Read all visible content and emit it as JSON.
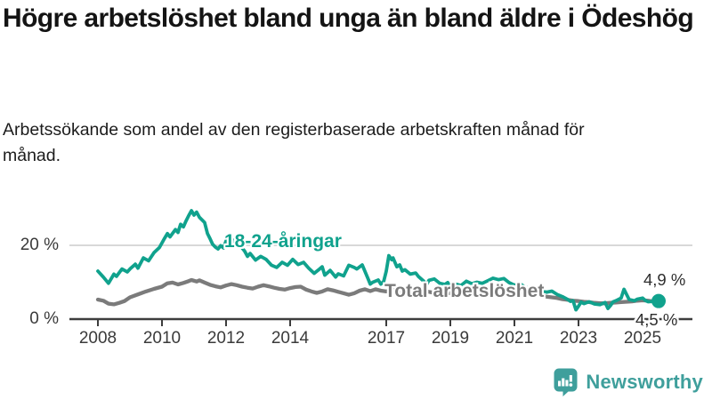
{
  "chart_data": {
    "type": "line",
    "title": "Högre arbetslöshet bland unga än bland äldre i Ödeshög",
    "subtitle": "Arbetssökande som andel av den registerbaserade arbetskraften månad för månad.",
    "unit": "%",
    "ylim": [
      0,
      30
    ],
    "xlim": [
      2007.1,
      2026.6
    ],
    "grid": "horizontal line at 20% only",
    "legend_position": "inline labels on lines",
    "y_ticks": [
      {
        "value": 20,
        "label": "20 %"
      },
      {
        "value": 0,
        "label": "0 %"
      }
    ],
    "x_ticks": [
      {
        "year": 2008,
        "label": "2008"
      },
      {
        "year": 2010,
        "label": "2010"
      },
      {
        "year": 2012,
        "label": "2012"
      },
      {
        "year": 2014,
        "label": "2014"
      },
      {
        "year": 2017,
        "label": "2017"
      },
      {
        "year": 2019,
        "label": "2019"
      },
      {
        "year": 2021,
        "label": "2021"
      },
      {
        "year": 2023,
        "label": "2023"
      },
      {
        "year": 2025,
        "label": "2025"
      }
    ],
    "series": [
      {
        "name": "18-24-åringar",
        "color": "#10a28d",
        "end_label": "4,9 %",
        "end_value": 4.9,
        "end_dot": true,
        "points": [
          [
            2008.0,
            13.0
          ],
          [
            2008.17,
            11.4
          ],
          [
            2008.33,
            9.7
          ],
          [
            2008.5,
            12.2
          ],
          [
            2008.58,
            11.6
          ],
          [
            2008.75,
            13.6
          ],
          [
            2008.92,
            12.8
          ],
          [
            2009.0,
            13.6
          ],
          [
            2009.17,
            14.9
          ],
          [
            2009.25,
            13.8
          ],
          [
            2009.42,
            16.6
          ],
          [
            2009.58,
            15.8
          ],
          [
            2009.75,
            18.0
          ],
          [
            2009.92,
            19.4
          ],
          [
            2010.08,
            21.9
          ],
          [
            2010.17,
            23.2
          ],
          [
            2010.25,
            22.3
          ],
          [
            2010.42,
            24.3
          ],
          [
            2010.5,
            23.5
          ],
          [
            2010.58,
            25.7
          ],
          [
            2010.67,
            25.0
          ],
          [
            2010.75,
            26.6
          ],
          [
            2010.83,
            28.0
          ],
          [
            2010.92,
            29.4
          ],
          [
            2011.0,
            28.2
          ],
          [
            2011.08,
            29.0
          ],
          [
            2011.17,
            27.6
          ],
          [
            2011.33,
            26.2
          ],
          [
            2011.42,
            23.2
          ],
          [
            2011.5,
            21.8
          ],
          [
            2011.58,
            20.3
          ],
          [
            2011.67,
            19.5
          ],
          [
            2011.75,
            19.0
          ],
          [
            2011.83,
            19.9
          ],
          [
            2011.92,
            19.3
          ],
          [
            2012.0,
            21.2
          ],
          [
            2012.17,
            21.0
          ],
          [
            2012.25,
            21.4
          ],
          [
            2012.42,
            20.2
          ],
          [
            2012.58,
            18.4
          ],
          [
            2012.67,
            17.0
          ],
          [
            2012.75,
            17.8
          ],
          [
            2012.92,
            16.0
          ],
          [
            2013.08,
            17.0
          ],
          [
            2013.25,
            16.2
          ],
          [
            2013.42,
            14.6
          ],
          [
            2013.58,
            14.0
          ],
          [
            2013.75,
            15.4
          ],
          [
            2013.92,
            14.6
          ],
          [
            2014.08,
            16.2
          ],
          [
            2014.25,
            14.8
          ],
          [
            2014.42,
            15.4
          ],
          [
            2014.58,
            13.8
          ],
          [
            2014.75,
            12.4
          ],
          [
            2014.92,
            13.6
          ],
          [
            2015.0,
            14.2
          ],
          [
            2015.08,
            11.9
          ],
          [
            2015.25,
            13.2
          ],
          [
            2015.42,
            11.4
          ],
          [
            2015.5,
            12.3
          ],
          [
            2015.67,
            11.7
          ],
          [
            2015.83,
            14.6
          ],
          [
            2016.0,
            14.0
          ],
          [
            2016.08,
            13.6
          ],
          [
            2016.25,
            14.7
          ],
          [
            2016.42,
            11.2
          ],
          [
            2016.5,
            9.5
          ],
          [
            2016.58,
            10.0
          ],
          [
            2016.75,
            10.6
          ],
          [
            2016.83,
            9.5
          ],
          [
            2016.92,
            10.2
          ],
          [
            2017.0,
            13.0
          ],
          [
            2017.08,
            17.2
          ],
          [
            2017.17,
            16.1
          ],
          [
            2017.21,
            16.6
          ],
          [
            2017.33,
            14.2
          ],
          [
            2017.42,
            14.7
          ],
          [
            2017.5,
            13.0
          ],
          [
            2017.58,
            13.4
          ],
          [
            2017.75,
            12.2
          ],
          [
            2017.92,
            12.5
          ],
          [
            2018.0,
            11.6
          ],
          [
            2018.17,
            10.3
          ],
          [
            2018.25,
            9.2
          ],
          [
            2018.33,
            10.5
          ],
          [
            2018.5,
            10.9
          ],
          [
            2018.67,
            9.7
          ],
          [
            2018.83,
            9.4
          ],
          [
            2018.92,
            9.9
          ],
          [
            2019.0,
            8.8
          ],
          [
            2019.17,
            9.5
          ],
          [
            2019.33,
            9.1
          ],
          [
            2019.5,
            10.3
          ],
          [
            2019.67,
            9.6
          ],
          [
            2019.83,
            10.0
          ],
          [
            2020.0,
            9.7
          ],
          [
            2020.17,
            10.4
          ],
          [
            2020.33,
            11.1
          ],
          [
            2020.5,
            10.7
          ],
          [
            2020.67,
            11.0
          ],
          [
            2020.83,
            9.9
          ],
          [
            2021.0,
            9.2
          ],
          [
            2021.17,
            9.6
          ],
          [
            2021.33,
            8.7
          ],
          [
            2021.5,
            8.3
          ],
          [
            2021.67,
            8.6
          ],
          [
            2021.83,
            7.7
          ],
          [
            2022.0,
            7.3
          ],
          [
            2022.17,
            7.6
          ],
          [
            2022.33,
            6.7
          ],
          [
            2022.5,
            6.1
          ],
          [
            2022.67,
            5.3
          ],
          [
            2022.75,
            4.8
          ],
          [
            2022.83,
            5.0
          ],
          [
            2022.92,
            2.5
          ],
          [
            2023.0,
            3.5
          ],
          [
            2023.08,
            4.6
          ],
          [
            2023.17,
            4.2
          ],
          [
            2023.33,
            4.7
          ],
          [
            2023.5,
            4.1
          ],
          [
            2023.67,
            3.9
          ],
          [
            2023.83,
            4.5
          ],
          [
            2023.92,
            2.9
          ],
          [
            2024.0,
            3.7
          ],
          [
            2024.08,
            4.7
          ],
          [
            2024.17,
            5.0
          ],
          [
            2024.33,
            5.7
          ],
          [
            2024.42,
            8.1
          ],
          [
            2024.5,
            6.7
          ],
          [
            2024.58,
            5.3
          ],
          [
            2024.75,
            5.0
          ],
          [
            2024.83,
            5.4
          ],
          [
            2025.0,
            5.7
          ],
          [
            2025.08,
            5.1
          ],
          [
            2025.17,
            4.7
          ],
          [
            2025.33,
            4.8
          ],
          [
            2025.5,
            4.9
          ]
        ]
      },
      {
        "name": "Total arbetslöshet",
        "color": "#7b7b7b",
        "end_label": "4,5 %",
        "end_value": 4.5,
        "end_dot": false,
        "points": [
          [
            2008.0,
            5.3
          ],
          [
            2008.17,
            5.0
          ],
          [
            2008.33,
            4.2
          ],
          [
            2008.5,
            4.0
          ],
          [
            2008.67,
            4.4
          ],
          [
            2008.83,
            4.9
          ],
          [
            2009.0,
            5.9
          ],
          [
            2009.25,
            6.7
          ],
          [
            2009.5,
            7.5
          ],
          [
            2009.75,
            8.2
          ],
          [
            2010.0,
            8.8
          ],
          [
            2010.17,
            9.7
          ],
          [
            2010.33,
            9.9
          ],
          [
            2010.5,
            9.4
          ],
          [
            2010.67,
            9.8
          ],
          [
            2010.83,
            10.3
          ],
          [
            2010.92,
            10.6
          ],
          [
            2011.08,
            10.2
          ],
          [
            2011.17,
            10.5
          ],
          [
            2011.33,
            9.9
          ],
          [
            2011.5,
            9.3
          ],
          [
            2011.67,
            8.9
          ],
          [
            2011.83,
            8.6
          ],
          [
            2012.0,
            9.1
          ],
          [
            2012.17,
            9.5
          ],
          [
            2012.33,
            9.2
          ],
          [
            2012.5,
            8.8
          ],
          [
            2012.67,
            8.5
          ],
          [
            2012.83,
            8.3
          ],
          [
            2013.0,
            8.8
          ],
          [
            2013.17,
            9.2
          ],
          [
            2013.33,
            8.9
          ],
          [
            2013.5,
            8.5
          ],
          [
            2013.67,
            8.2
          ],
          [
            2013.83,
            8.0
          ],
          [
            2014.0,
            8.4
          ],
          [
            2014.17,
            8.7
          ],
          [
            2014.33,
            8.8
          ],
          [
            2014.5,
            8.0
          ],
          [
            2014.67,
            7.5
          ],
          [
            2014.83,
            7.1
          ],
          [
            2015.0,
            7.5
          ],
          [
            2015.17,
            8.1
          ],
          [
            2015.33,
            7.8
          ],
          [
            2015.5,
            7.4
          ],
          [
            2015.67,
            7.0
          ],
          [
            2015.83,
            6.6
          ],
          [
            2016.0,
            7.0
          ],
          [
            2016.17,
            7.7
          ],
          [
            2016.33,
            8.1
          ],
          [
            2016.5,
            7.6
          ],
          [
            2016.67,
            8.1
          ],
          [
            2016.83,
            7.7
          ],
          [
            2017.0,
            7.5
          ],
          [
            2017.17,
            7.8
          ],
          [
            2017.33,
            8.1
          ],
          [
            2017.5,
            7.7
          ],
          [
            2017.67,
            7.4
          ],
          [
            2017.83,
            7.2
          ],
          [
            2018.0,
            7.5
          ],
          [
            2018.17,
            7.7
          ],
          [
            2018.33,
            7.4
          ],
          [
            2018.5,
            7.1
          ],
          [
            2018.67,
            6.9
          ],
          [
            2018.83,
            6.8
          ],
          [
            2019.0,
            7.1
          ],
          [
            2019.17,
            7.3
          ],
          [
            2019.33,
            7.1
          ],
          [
            2019.5,
            6.9
          ],
          [
            2019.67,
            7.0
          ],
          [
            2019.83,
            7.2
          ],
          [
            2020.0,
            7.5
          ],
          [
            2020.17,
            8.1
          ],
          [
            2020.33,
            8.6
          ],
          [
            2020.5,
            8.4
          ],
          [
            2020.67,
            8.2
          ],
          [
            2020.83,
            7.9
          ],
          [
            2021.0,
            7.7
          ],
          [
            2021.17,
            7.5
          ],
          [
            2021.33,
            7.2
          ],
          [
            2021.5,
            6.9
          ],
          [
            2021.67,
            6.6
          ],
          [
            2021.83,
            6.3
          ],
          [
            2022.0,
            6.1
          ],
          [
            2022.17,
            5.9
          ],
          [
            2022.33,
            5.7
          ],
          [
            2022.5,
            5.4
          ],
          [
            2022.67,
            5.2
          ],
          [
            2022.83,
            5.0
          ],
          [
            2023.0,
            4.9
          ],
          [
            2023.17,
            4.7
          ],
          [
            2023.33,
            4.6
          ],
          [
            2023.5,
            4.4
          ],
          [
            2023.67,
            4.3
          ],
          [
            2023.83,
            4.3
          ],
          [
            2024.0,
            4.4
          ],
          [
            2024.17,
            4.5
          ],
          [
            2024.33,
            4.6
          ],
          [
            2024.5,
            4.7
          ],
          [
            2024.67,
            4.8
          ],
          [
            2024.83,
            5.0
          ],
          [
            2025.0,
            5.1
          ],
          [
            2025.17,
            5.0
          ],
          [
            2025.33,
            4.8
          ],
          [
            2025.58,
            4.5
          ]
        ]
      }
    ]
  },
  "footer": {
    "brand": "Newsworthy",
    "logo_icon": "newsworthy-bar-chart-speech-bubble-icon",
    "brand_color": "#3f9f9c"
  },
  "style": {
    "grid_color": "#cccccc",
    "axis_color": "#3d3d3d",
    "text_color": "#3a3a3a"
  }
}
